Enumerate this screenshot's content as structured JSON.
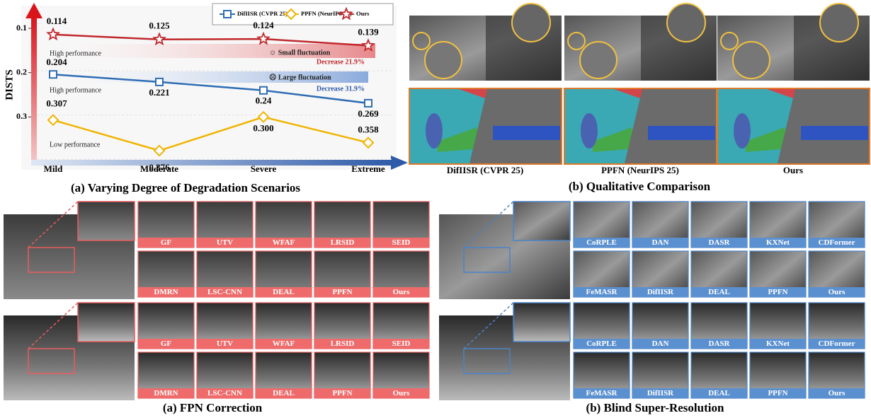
{
  "chart_data": {
    "type": "line",
    "y_label": "DISTS",
    "categories": [
      "Mild",
      "Moderate",
      "Severe",
      "Extreme"
    ],
    "series": [
      {
        "name": "DifIISR (CVPR 25)",
        "color": "#2e6db4",
        "marker": "square",
        "values": [
          0.204,
          0.221,
          0.24,
          0.269
        ]
      },
      {
        "name": "PPFN (NeurIPS 25)",
        "color": "#f0b400",
        "marker": "diamond",
        "values": [
          0.307,
          0.376,
          0.3,
          0.358
        ],
        "value_labels": [
          "0.307",
          "0.376",
          "0.300",
          "0.358"
        ]
      },
      {
        "name": "Ours",
        "color": "#c0282d",
        "marker": "star",
        "values": [
          0.114,
          0.125,
          0.124,
          0.139
        ]
      }
    ],
    "ylim": [
      0.06,
      0.4
    ],
    "y_inverted": true,
    "yticks": [
      0.1,
      0.2,
      0.3
    ],
    "annotations": [
      "High performance",
      "High performance",
      "Low performance",
      "☺ Small fluctuation",
      "Decrease 21.9%",
      "☹ Large fluctuation",
      "Decrease 31.9%"
    ]
  },
  "figure": {
    "caption_top_a": "(a) Varying Degree of Degradation Scenarios",
    "caption_top_b": "(b) Qualitative Comparison",
    "qualitative_labels": [
      "DifIISR (CVPR 25)",
      "PPFN (NeurIPS 25)",
      "Ours"
    ],
    "fpn": {
      "caption": "(a) FPN Correction",
      "methods": [
        [
          "GF",
          "UTV",
          "WFAF",
          "LRSID",
          "SEID"
        ],
        [
          "DMRN",
          "LSC-CNN",
          "DEAL",
          "PPFN",
          "Ours"
        ]
      ]
    },
    "sr": {
      "caption": "(b) Blind Super-Resolution",
      "methods": [
        [
          "CoRPLE",
          "DAN",
          "DASR",
          "KXNet",
          "CDFormer"
        ],
        [
          "FeMASR",
          "DifIISR",
          "DEAL",
          "PPFN",
          "Ours"
        ]
      ]
    }
  }
}
